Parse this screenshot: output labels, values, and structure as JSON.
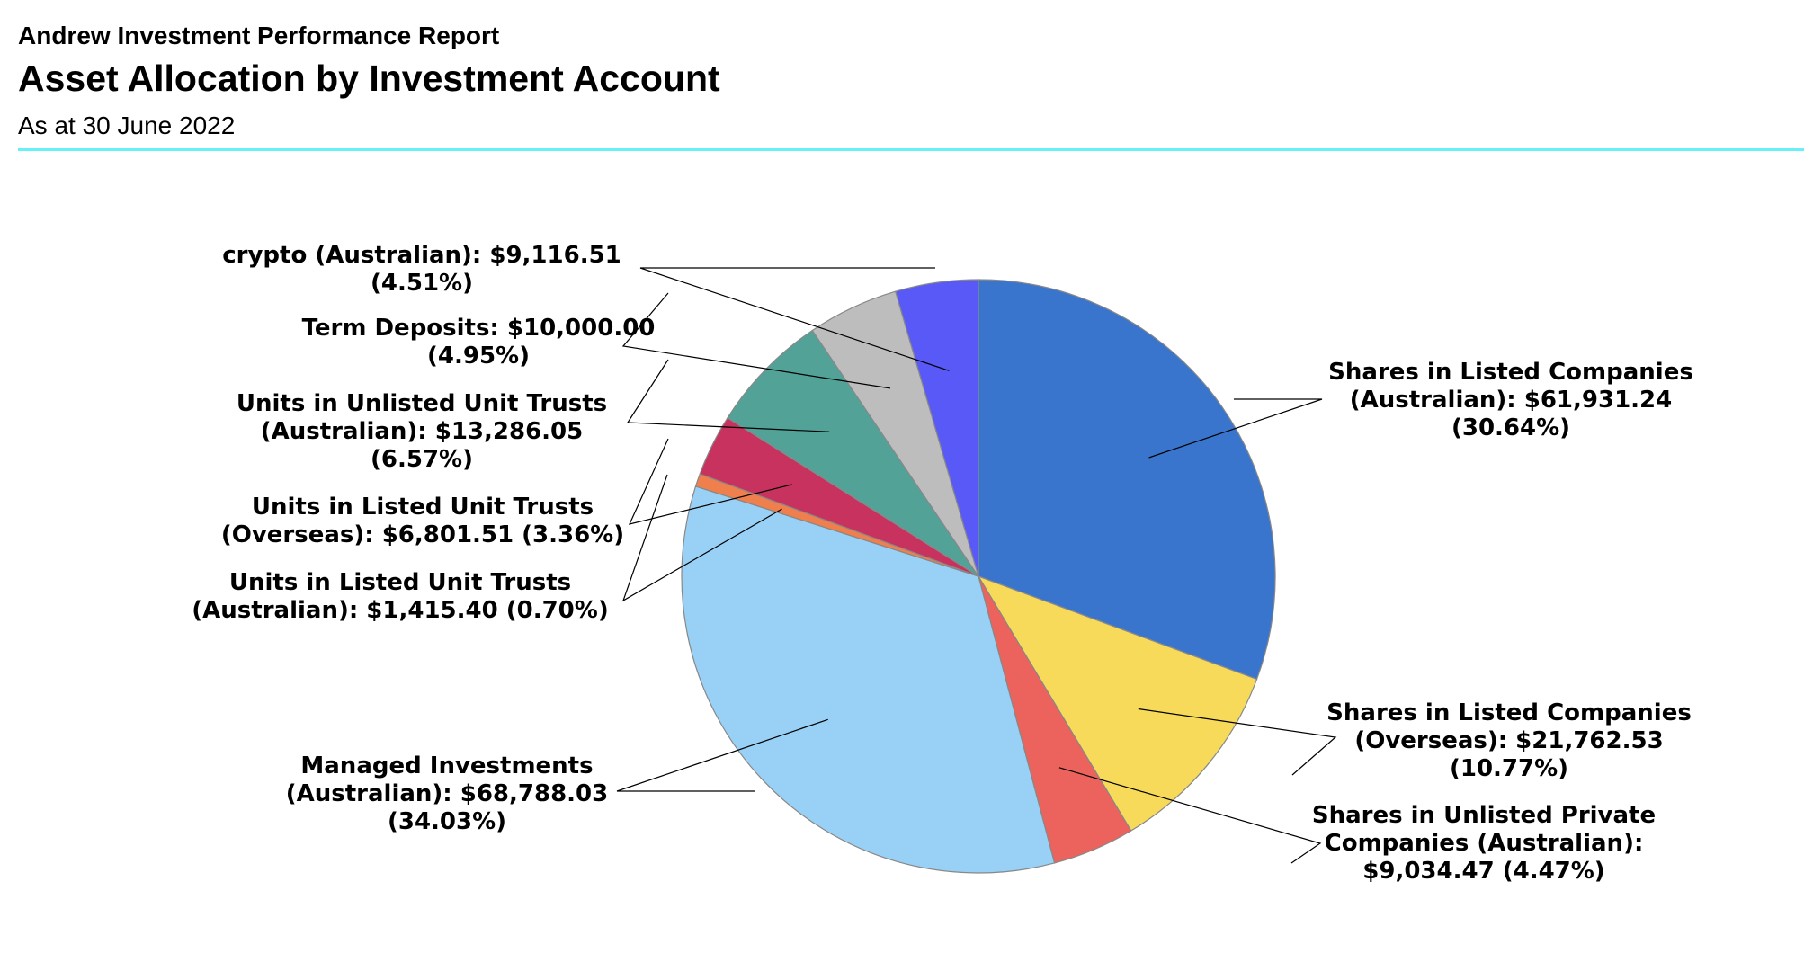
{
  "header": {
    "report_name": "Andrew Investment Performance Report",
    "title": "Asset Allocation by Investment Account",
    "subtitle": "As at 30 June 2022"
  },
  "colors": {
    "header_rule": "#66f0f7",
    "slice_edge": "#888888",
    "leader_line": "#000000"
  },
  "chart_data": {
    "type": "pie",
    "start": "12 o'clock",
    "direction": "clockwise",
    "legend": "none",
    "slices": [
      {
        "category": "Shares in Listed Companies (Australian)",
        "value": 61931.24,
        "percent": 30.64,
        "color": "#3a75cd",
        "label_lines": [
          "Shares in Listed Companies",
          "(Australian): $61,931.24",
          "(30.64%)"
        ],
        "label_side": "right"
      },
      {
        "category": "Shares in Listed Companies (Overseas)",
        "value": 21762.53,
        "percent": 10.77,
        "color": "#f7da5a",
        "label_lines": [
          "Shares in Listed Companies",
          "(Overseas): $21,762.53",
          "(10.77%)"
        ],
        "label_side": "right"
      },
      {
        "category": "Shares in Unlisted Private Companies (Australian)",
        "value": 9034.47,
        "percent": 4.47,
        "color": "#ec625c",
        "label_lines": [
          "Shares in Unlisted Private",
          "Companies (Australian):",
          "$9,034.47 (4.47%)"
        ],
        "label_side": "right"
      },
      {
        "category": "Managed Investments (Australian)",
        "value": 68788.03,
        "percent": 34.03,
        "color": "#98d1f5",
        "label_lines": [
          "Managed Investments",
          "(Australian): $68,788.03",
          "(34.03%)"
        ],
        "label_side": "left"
      },
      {
        "category": "Units in Listed Unit Trusts (Australian)",
        "value": 1415.4,
        "percent": 0.7,
        "color": "#ef7f4c",
        "label_lines": [
          "Units in Listed Unit Trusts",
          "(Australian): $1,415.40 (0.70%)"
        ],
        "label_side": "left"
      },
      {
        "category": "Units in Listed Unit Trusts (Overseas)",
        "value": 6801.51,
        "percent": 3.36,
        "color": "#c7325e",
        "label_lines": [
          "Units in Listed Unit Trusts",
          "(Overseas): $6,801.51 (3.36%)"
        ],
        "label_side": "left"
      },
      {
        "category": "Units in Unlisted Unit Trusts (Australian)",
        "value": 13286.05,
        "percent": 6.57,
        "color": "#52a298",
        "label_lines": [
          "Units in Unlisted Unit Trusts",
          "(Australian): $13,286.05",
          "(6.57%)"
        ],
        "label_side": "left"
      },
      {
        "category": "Term Deposits",
        "value": 10000.0,
        "percent": 4.95,
        "color": "#bdbdbd",
        "label_lines": [
          "Term Deposits: $10,000.00",
          "(4.95%)"
        ],
        "label_side": "left"
      },
      {
        "category": "crypto (Australian)",
        "value": 9116.51,
        "percent": 4.51,
        "color": "#5959f7",
        "label_lines": [
          "crypto (Australian): $9,116.51",
          "(4.51%)"
        ],
        "label_side": "left"
      }
    ]
  }
}
